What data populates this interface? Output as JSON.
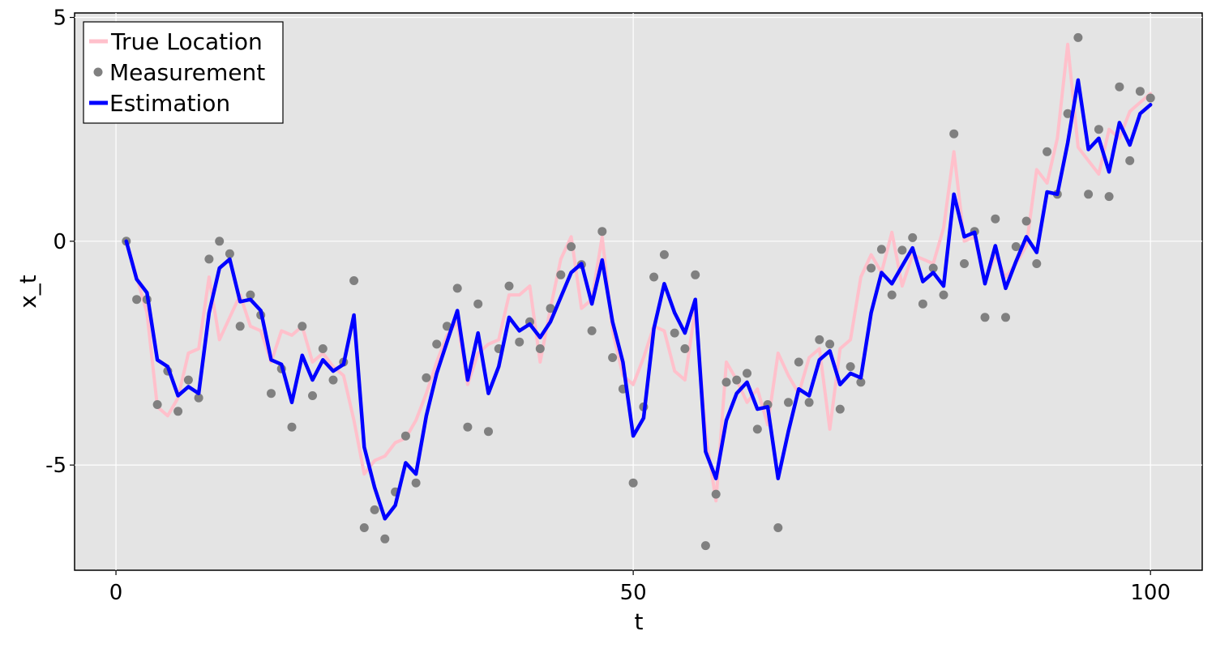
{
  "chart_data": {
    "type": "line",
    "xlabel": "t",
    "ylabel": "x_t",
    "xlim": [
      -4,
      105
    ],
    "ylim": [
      -7.35,
      5.1
    ],
    "xticks": [
      0,
      50,
      100
    ],
    "xtick_labels": [
      "0",
      "50",
      "100"
    ],
    "yticks": [
      5,
      0,
      -5
    ],
    "ytick_labels": [
      "5",
      "0",
      "-5"
    ],
    "grid": true,
    "background": "#e4e4e4",
    "legend_position": "top-left",
    "series": [
      {
        "name": "True Location",
        "kind": "line",
        "color": "#ffc0cb",
        "x": [
          1,
          2,
          3,
          4,
          5,
          6,
          7,
          8,
          9,
          10,
          11,
          12,
          13,
          14,
          15,
          16,
          17,
          18,
          19,
          20,
          21,
          22,
          23,
          24,
          25,
          26,
          27,
          28,
          29,
          30,
          31,
          32,
          33,
          34,
          35,
          36,
          37,
          38,
          39,
          40,
          41,
          42,
          43,
          44,
          45,
          46,
          47,
          48,
          49,
          50,
          51,
          52,
          53,
          54,
          55,
          56,
          57,
          58,
          59,
          60,
          61,
          62,
          63,
          64,
          65,
          66,
          67,
          68,
          69,
          70,
          71,
          72,
          73,
          74,
          75,
          76,
          77,
          78,
          79,
          80,
          81,
          82,
          83,
          84,
          85,
          86,
          87,
          88,
          89,
          90,
          91,
          92,
          93,
          94,
          95,
          96,
          97,
          98,
          99,
          100
        ],
        "y": [
          0,
          -0.8,
          -1.6,
          -3.7,
          -3.9,
          -3.5,
          -2.5,
          -2.4,
          -0.8,
          -2.2,
          -1.7,
          -1.2,
          -1.9,
          -2.0,
          -2.7,
          -2.0,
          -2.1,
          -1.9,
          -2.7,
          -2.5,
          -2.8,
          -3.0,
          -4.0,
          -5.2,
          -4.9,
          -4.8,
          -4.5,
          -4.4,
          -4.0,
          -3.4,
          -2.7,
          -2.1,
          -1.8,
          -3.2,
          -2.5,
          -2.3,
          -2.2,
          -1.2,
          -1.2,
          -1.0,
          -2.7,
          -1.5,
          -0.4,
          0.1,
          -1.5,
          -1.3,
          0.1,
          -2.0,
          -3.0,
          -3.2,
          -2.6,
          -1.9,
          -2.0,
          -2.9,
          -3.1,
          -1.5,
          -4.3,
          -5.8,
          -2.7,
          -3.1,
          -3.6,
          -3.3,
          -4.1,
          -2.5,
          -3.0,
          -3.4,
          -2.6,
          -2.4,
          -4.2,
          -2.4,
          -2.2,
          -0.8,
          -0.3,
          -0.7,
          0.2,
          -1.0,
          -0.3,
          -0.4,
          -0.5,
          0.3,
          2.0,
          0.0,
          0.1,
          -0.9,
          -0.3,
          -0.8,
          -0.5,
          -0.1,
          1.6,
          1.3,
          2.3,
          4.4,
          2.1,
          1.8,
          1.5,
          2.5,
          2.3,
          2.9,
          3.1,
          3.3
        ]
      },
      {
        "name": "Measurement",
        "kind": "scatter",
        "color": "#808080",
        "x": [
          1,
          2,
          3,
          4,
          5,
          6,
          7,
          8,
          9,
          10,
          11,
          12,
          13,
          14,
          15,
          16,
          17,
          18,
          19,
          20,
          21,
          22,
          23,
          24,
          25,
          26,
          27,
          28,
          29,
          30,
          31,
          32,
          33,
          34,
          35,
          36,
          37,
          38,
          39,
          40,
          41,
          42,
          43,
          44,
          45,
          46,
          47,
          48,
          49,
          50,
          51,
          52,
          53,
          54,
          55,
          56,
          57,
          58,
          59,
          60,
          61,
          62,
          63,
          64,
          65,
          66,
          67,
          68,
          69,
          70,
          71,
          72,
          73,
          74,
          75,
          76,
          77,
          78,
          79,
          80,
          81,
          82,
          83,
          84,
          85,
          86,
          87,
          88,
          89,
          90,
          91,
          92,
          93,
          94,
          95,
          96,
          97,
          98,
          99,
          100
        ],
        "y": [
          0.0,
          -1.3,
          -1.3,
          -3.65,
          -2.9,
          -3.8,
          -3.1,
          -3.5,
          -0.4,
          0.0,
          -0.28,
          -1.9,
          -1.2,
          -1.65,
          -3.4,
          -2.85,
          -4.15,
          -1.9,
          -3.45,
          -2.4,
          -3.1,
          -2.7,
          -0.88,
          -6.4,
          -6.0,
          -6.65,
          -5.6,
          -4.35,
          -5.4,
          -3.05,
          -2.3,
          -1.9,
          -1.05,
          -4.15,
          -1.4,
          -4.25,
          -2.4,
          -1.0,
          -2.25,
          -1.8,
          -2.4,
          -1.5,
          -0.75,
          -0.12,
          -0.52,
          -2.0,
          0.22,
          -2.6,
          -3.3,
          -5.4,
          -3.7,
          -0.8,
          -0.3,
          -2.05,
          -2.4,
          -0.75,
          -6.8,
          -5.65,
          -3.15,
          -3.1,
          -2.95,
          -4.2,
          -3.65,
          -6.4,
          -3.6,
          -2.7,
          -3.6,
          -2.2,
          -2.3,
          -3.75,
          -2.8,
          -3.15,
          -0.6,
          -0.18,
          -1.2,
          -0.2,
          0.08,
          -1.4,
          -0.6,
          -1.2,
          2.4,
          -0.5,
          0.22,
          -1.7,
          0.5,
          -1.7,
          -0.12,
          0.45,
          -0.5,
          2.0,
          1.05,
          2.85,
          4.55,
          1.05,
          2.5,
          1.0,
          3.45,
          1.8,
          3.35,
          3.2
        ]
      },
      {
        "name": "Estimation",
        "kind": "line",
        "color": "#0000ff",
        "x": [
          1,
          2,
          3,
          4,
          5,
          6,
          7,
          8,
          9,
          10,
          11,
          12,
          13,
          14,
          15,
          16,
          17,
          18,
          19,
          20,
          21,
          22,
          23,
          24,
          25,
          26,
          27,
          28,
          29,
          30,
          31,
          32,
          33,
          34,
          35,
          36,
          37,
          38,
          39,
          40,
          41,
          42,
          43,
          44,
          45,
          46,
          47,
          48,
          49,
          50,
          51,
          52,
          53,
          54,
          55,
          56,
          57,
          58,
          59,
          60,
          61,
          62,
          63,
          64,
          65,
          66,
          67,
          68,
          69,
          70,
          71,
          72,
          73,
          74,
          75,
          76,
          77,
          78,
          79,
          80,
          81,
          82,
          83,
          84,
          85,
          86,
          87,
          88,
          89,
          90,
          91,
          92,
          93,
          94,
          95,
          96,
          97,
          98,
          99,
          100
        ],
        "y": [
          0,
          -0.85,
          -1.15,
          -2.65,
          -2.8,
          -3.45,
          -3.25,
          -3.4,
          -1.6,
          -0.6,
          -0.4,
          -1.35,
          -1.3,
          -1.55,
          -2.65,
          -2.75,
          -3.6,
          -2.55,
          -3.1,
          -2.65,
          -2.9,
          -2.75,
          -1.65,
          -4.6,
          -5.5,
          -6.2,
          -5.9,
          -4.95,
          -5.2,
          -3.9,
          -2.95,
          -2.25,
          -1.55,
          -3.1,
          -2.05,
          -3.4,
          -2.8,
          -1.7,
          -2.0,
          -1.85,
          -2.15,
          -1.8,
          -1.25,
          -0.7,
          -0.5,
          -1.4,
          -0.42,
          -1.8,
          -2.7,
          -4.35,
          -3.95,
          -1.95,
          -0.95,
          -1.6,
          -2.05,
          -1.3,
          -4.7,
          -5.3,
          -4.0,
          -3.4,
          -3.15,
          -3.75,
          -3.7,
          -5.3,
          -4.25,
          -3.3,
          -3.45,
          -2.65,
          -2.45,
          -3.2,
          -2.95,
          -3.05,
          -1.6,
          -0.7,
          -0.95,
          -0.55,
          -0.15,
          -0.9,
          -0.7,
          -1.0,
          1.05,
          0.1,
          0.2,
          -0.95,
          -0.1,
          -1.05,
          -0.45,
          0.1,
          -0.25,
          1.1,
          1.05,
          2.2,
          3.6,
          2.05,
          2.3,
          1.55,
          2.65,
          2.15,
          2.85,
          3.05
        ]
      }
    ]
  }
}
